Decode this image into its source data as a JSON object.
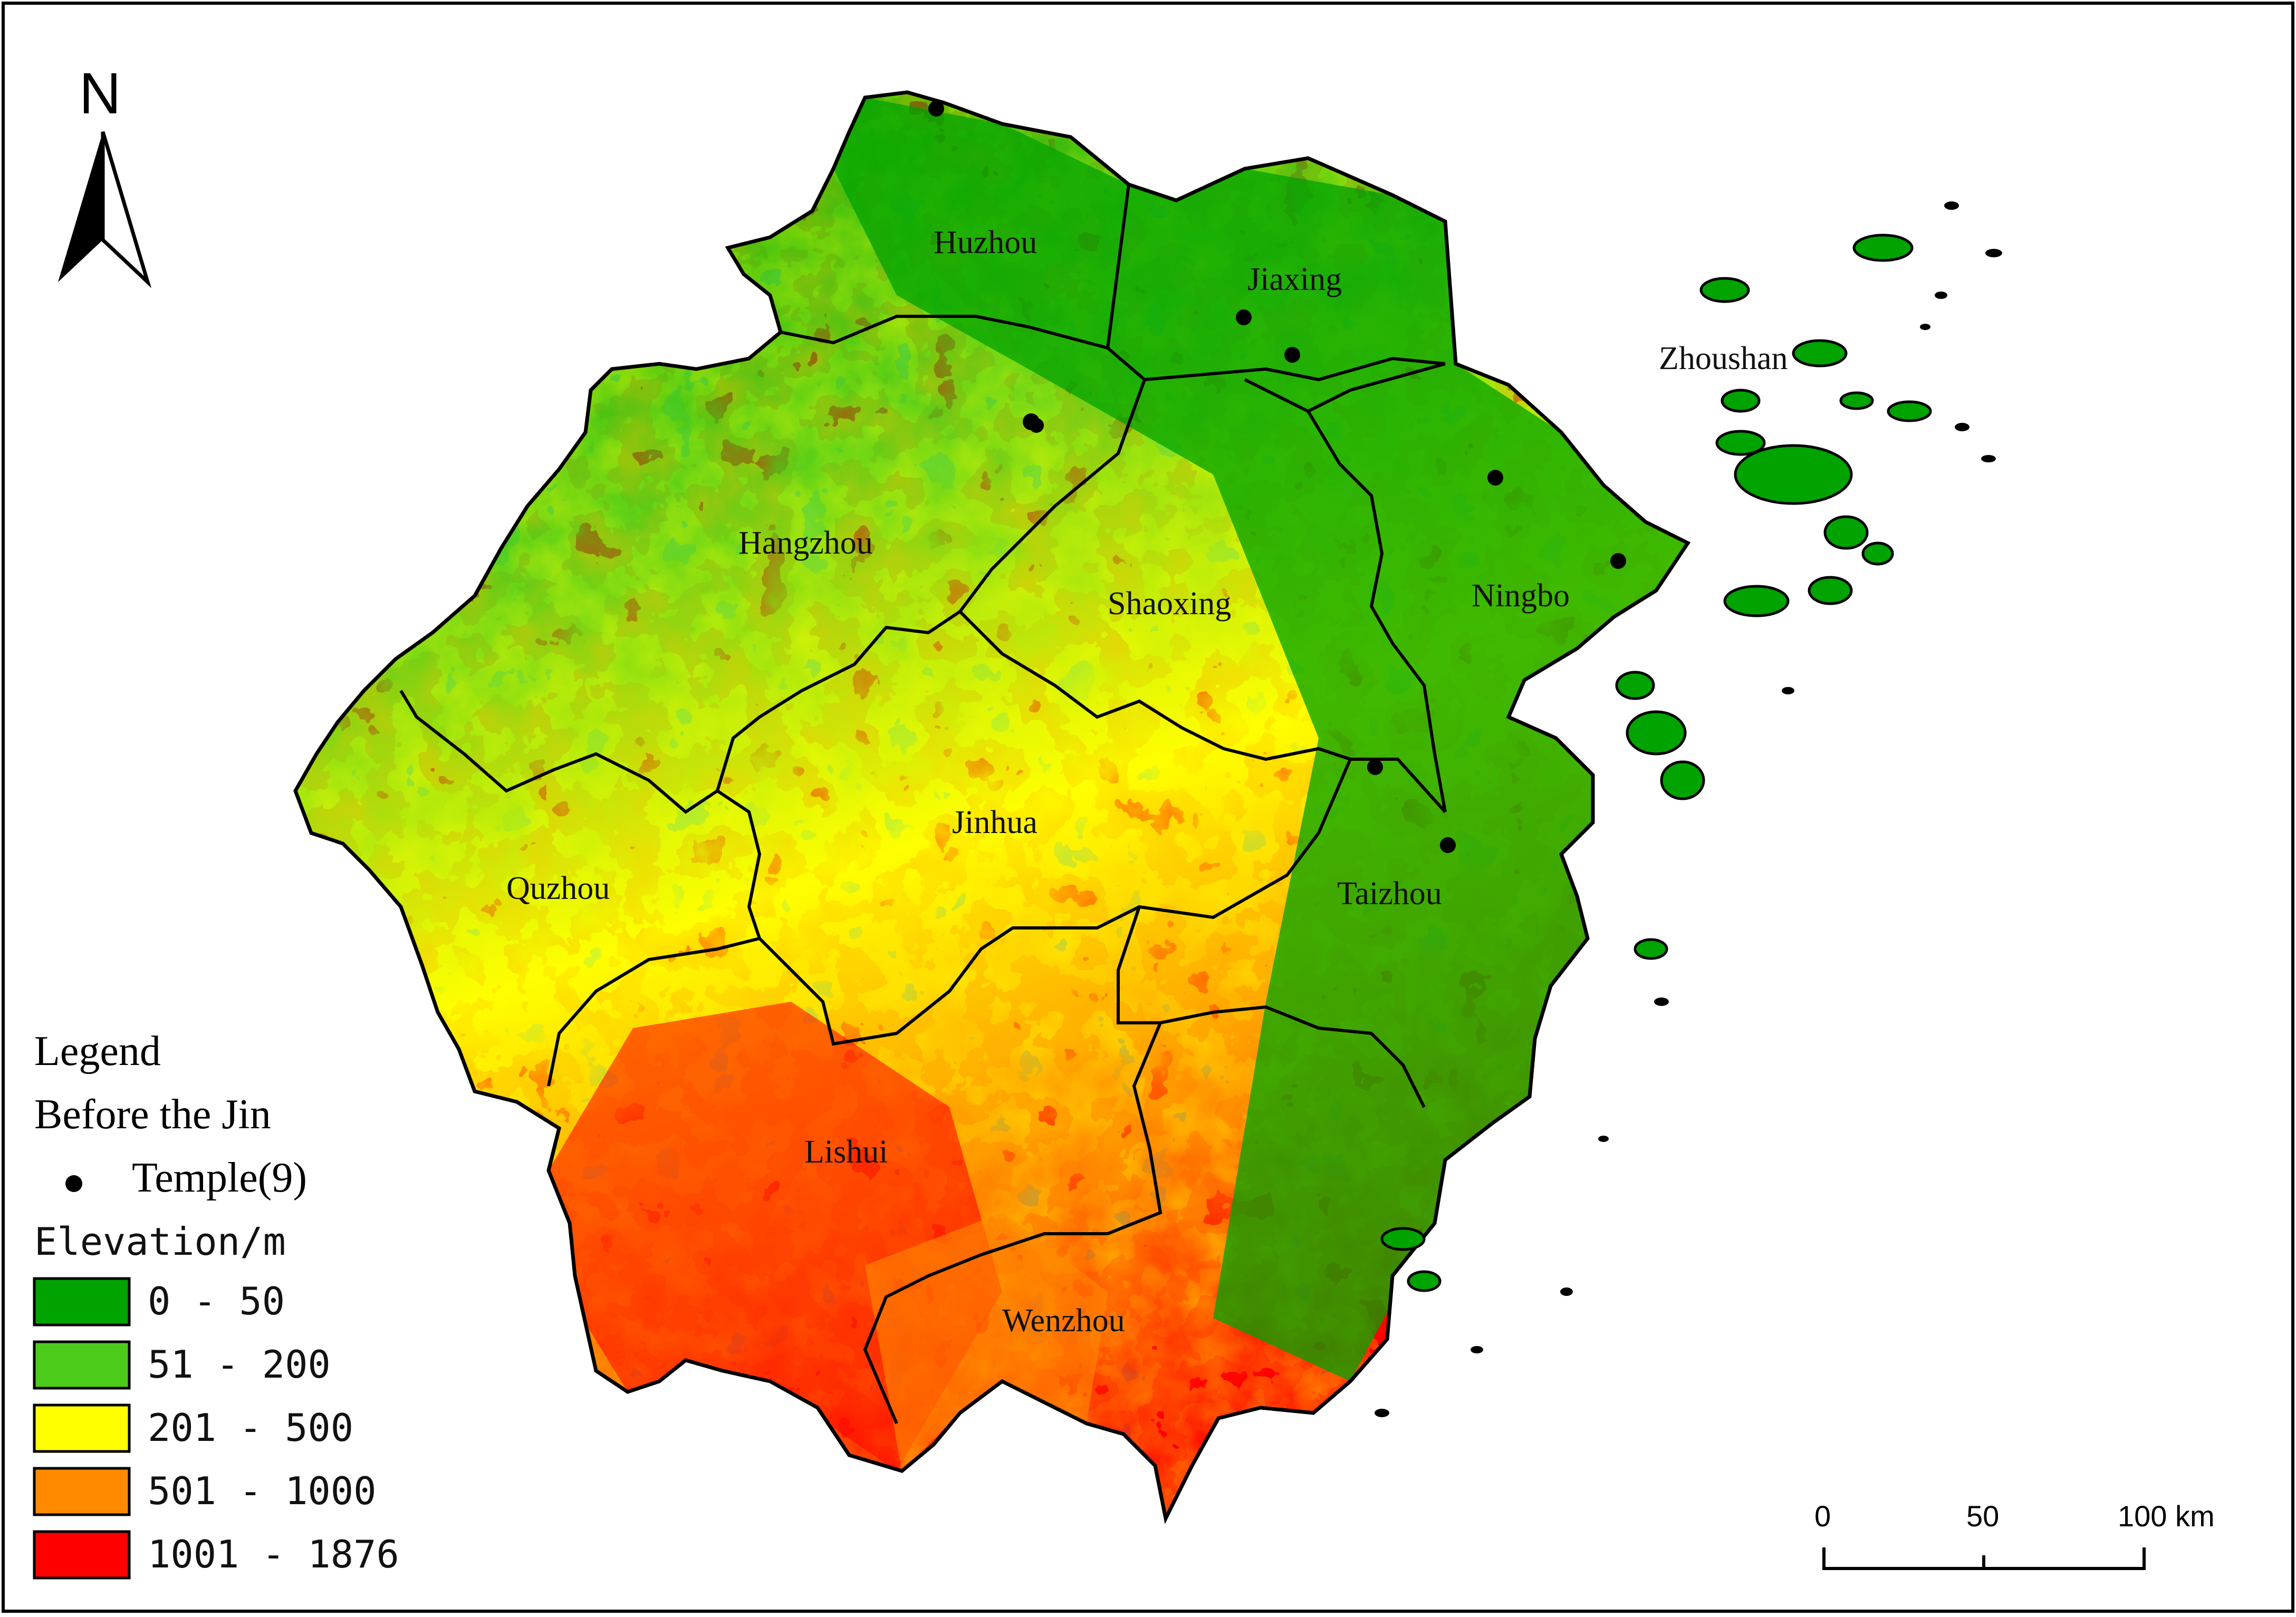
{
  "north_arrow": {
    "label": "N"
  },
  "cities": [
    {
      "id": "huzhou",
      "name": "Huzhou"
    },
    {
      "id": "jiaxing",
      "name": "Jiaxing"
    },
    {
      "id": "zhoushan",
      "name": "Zhoushan"
    },
    {
      "id": "hangzhou",
      "name": "Hangzhou"
    },
    {
      "id": "shaoxing",
      "name": "Shaoxing"
    },
    {
      "id": "ningbo",
      "name": "Ningbo"
    },
    {
      "id": "jinhua",
      "name": "Jinhua"
    },
    {
      "id": "quzhou",
      "name": "Quzhou"
    },
    {
      "id": "taizhou",
      "name": "Taizhou"
    },
    {
      "id": "lishui",
      "name": "Lishui"
    },
    {
      "id": "wenzhou",
      "name": "Wenzhou"
    }
  ],
  "legend": {
    "title": "Legend",
    "period": "Before the Jin",
    "temple_label": "Temple(9)",
    "elevation_title": "Elevation/m",
    "classes": [
      {
        "label": "0 - 50",
        "color": "#00a300"
      },
      {
        "label": "51 - 200",
        "color": "#4ccc1a"
      },
      {
        "label": "201 - 500",
        "color": "#ffff00"
      },
      {
        "label": "501 - 1000",
        "color": "#ff8a00"
      },
      {
        "label": "1001 - 1876",
        "color": "#ff0000"
      }
    ]
  },
  "scale_bar": {
    "ticks": [
      "0",
      "50",
      "100 km"
    ]
  }
}
